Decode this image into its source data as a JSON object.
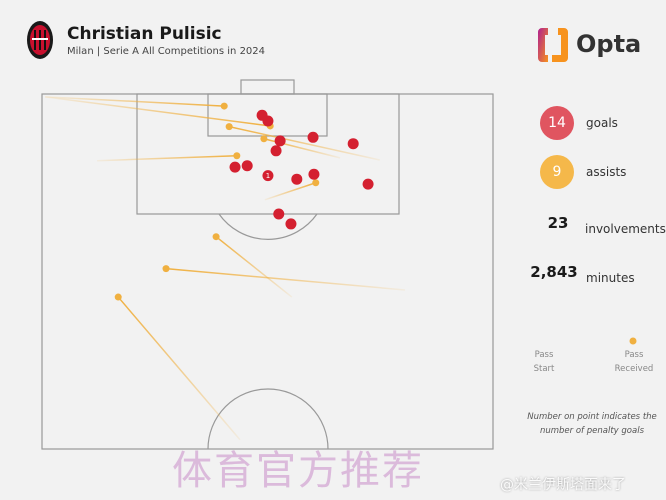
{
  "header": {
    "title": "Christian Pulisic",
    "subtitle": "Milan | Serie A All Competitions in 2024",
    "brand": "Opta"
  },
  "stats": [
    {
      "value": "14",
      "label": "goals",
      "color": "#e05560"
    },
    {
      "value": "9",
      "label": "assists",
      "color": "#f5b84a"
    },
    {
      "value": "23",
      "label": "involvements"
    },
    {
      "value": "2,843",
      "label": "minutes"
    }
  ],
  "legend": {
    "start": "Pass Start",
    "end": "Pass Received",
    "note": "Number on point indicates the number of penalty goals"
  },
  "watermark": "体育官方推荐",
  "weibo": "@米兰伊斯塔面来了",
  "chart_data": {
    "type": "scatter",
    "coordinate_system": "half pitch, x = % across pitch width from left, y = % of pitch length from goal line (50 = halfway line)",
    "goal_color": "#d42030",
    "assist_color": "#f0b040",
    "goals": [
      {
        "x": 48.8,
        "y": 3.0
      },
      {
        "x": 50.1,
        "y": 3.8
      },
      {
        "x": 60.1,
        "y": 6.1
      },
      {
        "x": 69.0,
        "y": 7.0
      },
      {
        "x": 52.8,
        "y": 6.6
      },
      {
        "x": 51.9,
        "y": 8.0
      },
      {
        "x": 42.8,
        "y": 10.3
      },
      {
        "x": 45.5,
        "y": 10.1
      },
      {
        "x": 50.1,
        "y": 11.5,
        "penalties": "1"
      },
      {
        "x": 56.5,
        "y": 12.0
      },
      {
        "x": 60.3,
        "y": 11.3
      },
      {
        "x": 72.3,
        "y": 12.7
      },
      {
        "x": 52.5,
        "y": 16.9
      },
      {
        "x": 55.2,
        "y": 18.3
      }
    ],
    "assists": [
      {
        "start": [
          0.7,
          0.4
        ],
        "end": [
          40.4,
          1.7
        ]
      },
      {
        "start": [
          0.7,
          0.4
        ],
        "end": [
          50.6,
          4.5
        ]
      },
      {
        "start": [
          74.9,
          9.3
        ],
        "end": [
          41.5,
          4.6
        ]
      },
      {
        "start": [
          66.1,
          9.0
        ],
        "end": [
          49.2,
          6.3
        ]
      },
      {
        "start": [
          12.2,
          9.4
        ],
        "end": [
          43.2,
          8.7
        ]
      },
      {
        "start": [
          49.4,
          14.9
        ],
        "end": [
          60.7,
          12.5
        ]
      },
      {
        "start": [
          55.4,
          28.6
        ],
        "end": [
          38.6,
          20.1
        ]
      },
      {
        "start": [
          80.5,
          27.6
        ],
        "end": [
          27.5,
          24.6
        ]
      },
      {
        "start": [
          43.9,
          48.7
        ],
        "end": [
          16.9,
          28.6
        ]
      }
    ]
  }
}
